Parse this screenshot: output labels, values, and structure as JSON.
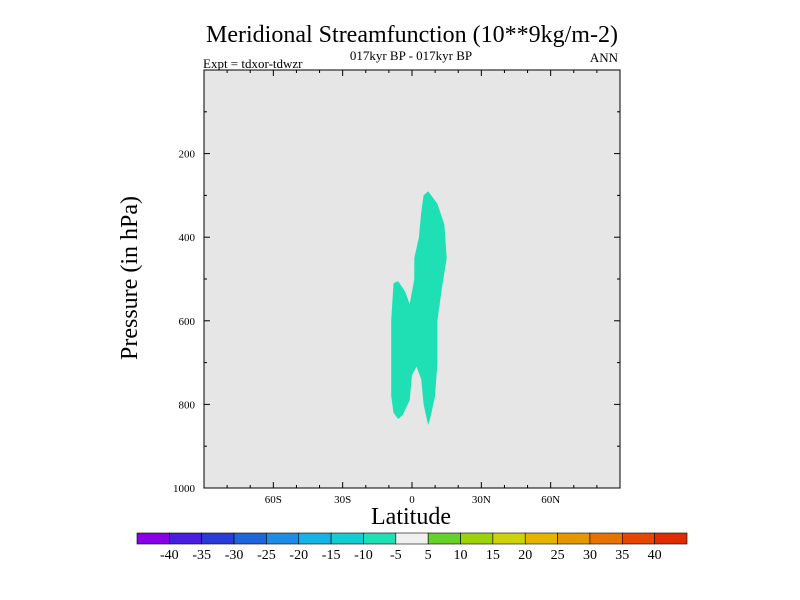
{
  "chart_data": {
    "type": "contour",
    "title": "Meridional Streamfunction (10**9kg/m-2)",
    "subtitle_center": "017kyr BP - 017kyr BP",
    "subtitle_left": "Expt = tdxor-tdwzr",
    "subtitle_right": "ANN",
    "xlabel": "Latitude",
    "ylabel": "Pressure (in hPa)",
    "xlim": [
      -90,
      90
    ],
    "ylim": [
      1000,
      0
    ],
    "y_reversed": true,
    "x_ticks": [
      {
        "value": -60,
        "label": "60S"
      },
      {
        "value": -30,
        "label": "30S"
      },
      {
        "value": 0,
        "label": "0"
      },
      {
        "value": 30,
        "label": "30N"
      },
      {
        "value": 60,
        "label": "60N"
      }
    ],
    "y_ticks": [
      {
        "value": 200,
        "label": "200"
      },
      {
        "value": 400,
        "label": "400"
      },
      {
        "value": 600,
        "label": "600"
      },
      {
        "value": 800,
        "label": "800"
      },
      {
        "value": 1000,
        "label": "1000"
      }
    ],
    "background_color": "#e6e6e6",
    "regions": [
      {
        "level_range": [
          -10,
          -5
        ],
        "color": "#1ee0b4",
        "outline": [
          [
            7,
            290
          ],
          [
            11,
            320
          ],
          [
            14,
            370
          ],
          [
            15,
            450
          ],
          [
            13,
            520
          ],
          [
            11,
            600
          ],
          [
            11,
            700
          ],
          [
            10,
            780
          ],
          [
            8,
            830
          ],
          [
            7,
            850
          ],
          [
            5,
            800
          ],
          [
            4,
            740
          ],
          [
            2,
            710
          ],
          [
            0,
            730
          ],
          [
            -1,
            790
          ],
          [
            -4,
            825
          ],
          [
            -6,
            835
          ],
          [
            -8,
            820
          ],
          [
            -9,
            780
          ],
          [
            -9,
            700
          ],
          [
            -9,
            600
          ],
          [
            -8,
            510
          ],
          [
            -6,
            505
          ],
          [
            -3,
            530
          ],
          [
            -1,
            560
          ],
          [
            1,
            500
          ],
          [
            1,
            450
          ],
          [
            3,
            400
          ],
          [
            4,
            340
          ],
          [
            5,
            300
          ]
        ]
      }
    ],
    "colorbar": {
      "labels": [
        "-40",
        "-35",
        "-30",
        "-25",
        "-20",
        "-15",
        "-10",
        "-5",
        "5",
        "10",
        "15",
        "20",
        "25",
        "30",
        "35",
        "40"
      ],
      "colors": [
        "#8a00e6",
        "#4a1ee0",
        "#2a3cd8",
        "#1e64dc",
        "#1e8ce6",
        "#14b4e6",
        "#14cdd2",
        "#1ee0b4",
        "#f0f0f0",
        "#64d228",
        "#9bd20a",
        "#cdd20a",
        "#e6b400",
        "#e69600",
        "#e67300",
        "#e64600",
        "#e02d00"
      ]
    }
  }
}
